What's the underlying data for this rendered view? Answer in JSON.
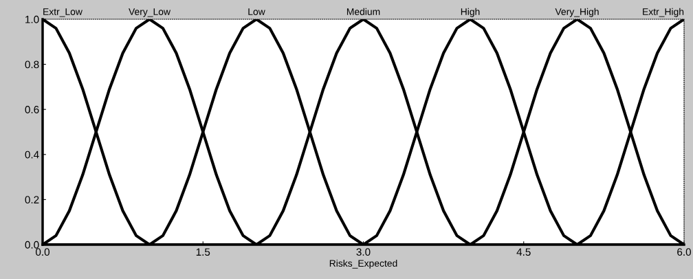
{
  "chart_data": {
    "type": "line",
    "xlabel": "Risks_Expected",
    "series": [
      {
        "name": "Extr_Low",
        "color": "#000000",
        "x": [
          0,
          0.125,
          0.25,
          0.375,
          0.5,
          0.625,
          0.75,
          0.875,
          1,
          6
        ],
        "values": [
          1,
          0.96,
          0.85,
          0.69,
          0.5,
          0.31,
          0.15,
          0.04,
          0,
          0
        ]
      },
      {
        "name": "Very_Low",
        "color": "#000000",
        "x": [
          0,
          0.125,
          0.25,
          0.375,
          0.5,
          0.625,
          0.75,
          0.875,
          1,
          1.125,
          1.25,
          1.375,
          1.5,
          1.625,
          1.75,
          1.875,
          2,
          6
        ],
        "values": [
          0,
          0.04,
          0.15,
          0.31,
          0.5,
          0.69,
          0.85,
          0.96,
          1,
          0.96,
          0.85,
          0.69,
          0.5,
          0.31,
          0.15,
          0.04,
          0,
          0
        ]
      },
      {
        "name": "Low",
        "color": "#000000",
        "x": [
          0,
          1,
          1.125,
          1.25,
          1.375,
          1.5,
          1.625,
          1.75,
          1.875,
          2,
          2.125,
          2.25,
          2.375,
          2.5,
          2.625,
          2.75,
          2.875,
          3,
          6
        ],
        "values": [
          0,
          0,
          0.04,
          0.15,
          0.31,
          0.5,
          0.69,
          0.85,
          0.96,
          1,
          0.96,
          0.85,
          0.69,
          0.5,
          0.31,
          0.15,
          0.04,
          0,
          0
        ]
      },
      {
        "name": "Medium",
        "color": "#000000",
        "x": [
          0,
          2,
          2.125,
          2.25,
          2.375,
          2.5,
          2.625,
          2.75,
          2.875,
          3,
          3.125,
          3.25,
          3.375,
          3.5,
          3.625,
          3.75,
          3.875,
          4,
          6
        ],
        "values": [
          0,
          0,
          0.04,
          0.15,
          0.31,
          0.5,
          0.69,
          0.85,
          0.96,
          1,
          0.96,
          0.85,
          0.69,
          0.5,
          0.31,
          0.15,
          0.04,
          0,
          0
        ]
      },
      {
        "name": "High",
        "color": "#000000",
        "x": [
          0,
          3,
          3.125,
          3.25,
          3.375,
          3.5,
          3.625,
          3.75,
          3.875,
          4,
          4.125,
          4.25,
          4.375,
          4.5,
          4.625,
          4.75,
          4.875,
          5,
          6
        ],
        "values": [
          0,
          0,
          0.04,
          0.15,
          0.31,
          0.5,
          0.69,
          0.85,
          0.96,
          1,
          0.96,
          0.85,
          0.69,
          0.5,
          0.31,
          0.15,
          0.04,
          0,
          0
        ]
      },
      {
        "name": "Very_High",
        "color": "#000000",
        "x": [
          0,
          4,
          4.125,
          4.25,
          4.375,
          4.5,
          4.625,
          4.75,
          4.875,
          5,
          5.125,
          5.25,
          5.375,
          5.5,
          5.625,
          5.75,
          5.875,
          6
        ],
        "values": [
          0,
          0,
          0.04,
          0.15,
          0.31,
          0.5,
          0.69,
          0.85,
          0.96,
          1,
          0.96,
          0.85,
          0.69,
          0.5,
          0.31,
          0.15,
          0.04,
          0
        ]
      },
      {
        "name": "Extr_High",
        "color": "#000000",
        "x": [
          0,
          5,
          5.125,
          5.25,
          5.375,
          5.5,
          5.625,
          5.75,
          5.875,
          6
        ],
        "values": [
          0,
          0,
          0.04,
          0.15,
          0.31,
          0.5,
          0.69,
          0.85,
          0.96,
          1
        ]
      }
    ],
    "xlim": [
      0,
      6
    ],
    "ylim": [
      0,
      1
    ],
    "xticks": [
      {
        "value": 0,
        "label": "0.0"
      },
      1.5,
      {
        "value": 3,
        "label": "3.0"
      },
      4.5,
      {
        "value": 6,
        "label": "6.0"
      }
    ],
    "yticks": [
      {
        "value": 0,
        "label": "0.0"
      },
      0.2,
      0.4,
      0.6,
      0.8,
      {
        "value": 1,
        "label": "1.0"
      }
    ],
    "grid": false,
    "legend": false,
    "marker": "none",
    "line_style": "solid"
  }
}
